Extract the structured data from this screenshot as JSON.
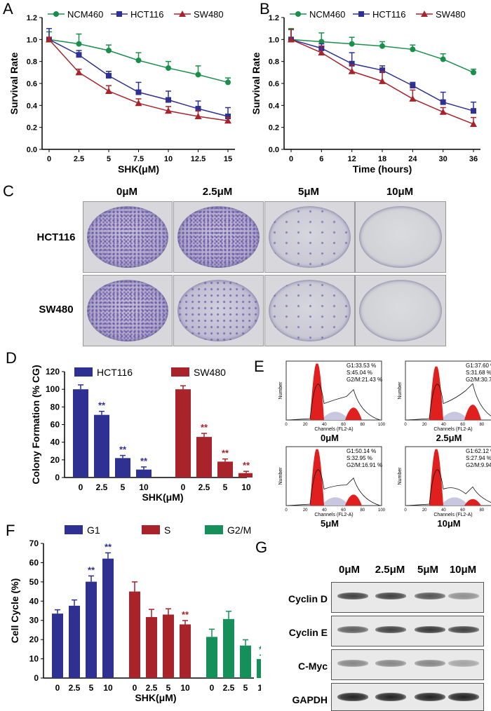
{
  "colors": {
    "ncm": "#1a8f4c",
    "hct": "#2e3192",
    "sw": "#a8232a",
    "g2m": "#16905a",
    "band": "#222222"
  },
  "panels": {
    "a": "A",
    "b": "B",
    "c": "C",
    "d": "D",
    "e": "E",
    "f": "F",
    "g": "G"
  },
  "panel_c": {
    "columns": [
      "0μM",
      "2.5μM",
      "5μM",
      "10μM"
    ],
    "rows": [
      "HCT116",
      "SW480"
    ]
  },
  "panel_e": {
    "plots": [
      {
        "label": "0μM",
        "g1": "G1:33.53 %",
        "s": "S:45.04 %",
        "g2m": "G2/M:21.43 %"
      },
      {
        "label": "2.5μM",
        "g1": "G1:37.60 %",
        "s": "S:31.68 %",
        "g2m": "G2/M:30.72 %"
      },
      {
        "label": "5μM",
        "g1": "G1:50.14 %",
        "s": "S:32.95 %",
        "g2m": "G2/M:16.91 %"
      },
      {
        "label": "10μM",
        "g1": "G1:62.12 %",
        "s": "S:27.94 %",
        "g2m": "G2/M:9.94 %"
      }
    ],
    "ylabel": "Number",
    "xlabel": "Channels (FL2-A)",
    "ticks": [
      "0",
      "20",
      "40",
      "60",
      "80",
      "100"
    ]
  },
  "panel_g": {
    "columns": [
      "0μM",
      "2.5μM",
      "5μM",
      "10μM"
    ],
    "rows": [
      "Cyclin D",
      "Cyclin E",
      "C-Myc",
      "GAPDH"
    ],
    "intensity": [
      [
        0.85,
        0.85,
        0.75,
        0.45
      ],
      [
        0.7,
        0.85,
        0.9,
        0.85
      ],
      [
        0.5,
        0.5,
        0.5,
        0.35
      ],
      [
        1,
        1,
        1,
        1
      ]
    ]
  },
  "chart_data": [
    {
      "id": "A",
      "type": "line",
      "xlabel": "SHK(μM)",
      "ylabel": "Survival Rate",
      "x": [
        0,
        2.5,
        5,
        7.5,
        10,
        12.5,
        15
      ],
      "xticks": [
        "0",
        "2.5",
        "5",
        "7.5",
        "10",
        "12.5",
        "15"
      ],
      "ylim": [
        0,
        1.2
      ],
      "yticks": [
        "0.0",
        "0.2",
        "0.4",
        "0.6",
        "0.8",
        "1.0",
        "1.2"
      ],
      "series": [
        {
          "name": "NCM460",
          "values": [
            1.0,
            0.96,
            0.9,
            0.81,
            0.74,
            0.68,
            0.61
          ],
          "err": [
            0.07,
            0.09,
            0.05,
            0.07,
            0.06,
            0.08,
            0.04
          ]
        },
        {
          "name": "HCT116",
          "values": [
            1.0,
            0.86,
            0.67,
            0.52,
            0.45,
            0.37,
            0.3
          ],
          "err": [
            0.1,
            0.04,
            0.04,
            0.09,
            0.08,
            0.07,
            0.08
          ]
        },
        {
          "name": "SW480",
          "values": [
            1.0,
            0.7,
            0.53,
            0.42,
            0.35,
            0.3,
            0.26
          ],
          "err": [
            0.02,
            0.03,
            0.05,
            0.04,
            0.04,
            0.05,
            0.03
          ]
        }
      ]
    },
    {
      "id": "B",
      "type": "line",
      "xlabel": "Time (hours)",
      "ylabel": "Survival Rate",
      "x": [
        0,
        6,
        12,
        18,
        24,
        30,
        36
      ],
      "xticks": [
        "0",
        "6",
        "12",
        "18",
        "24",
        "30",
        "36"
      ],
      "ylim": [
        0,
        1.2
      ],
      "yticks": [
        "0.0",
        "0.2",
        "0.4",
        "0.6",
        "0.8",
        "1.0",
        "1.2"
      ],
      "series": [
        {
          "name": "NCM460",
          "values": [
            1.0,
            0.98,
            0.96,
            0.94,
            0.91,
            0.82,
            0.7
          ],
          "err": [
            0.1,
            0.08,
            0.06,
            0.04,
            0.04,
            0.05,
            0.03
          ]
        },
        {
          "name": "HCT116",
          "values": [
            1.0,
            0.92,
            0.78,
            0.72,
            0.58,
            0.43,
            0.35
          ],
          "err": [
            0.09,
            0.04,
            0.1,
            0.04,
            0.03,
            0.09,
            0.08
          ]
        },
        {
          "name": "SW480",
          "values": [
            1.0,
            0.88,
            0.71,
            0.62,
            0.46,
            0.34,
            0.23
          ],
          "err": [
            0.09,
            0.06,
            0.06,
            0.09,
            0.08,
            0.04,
            0.06
          ]
        }
      ]
    },
    {
      "id": "D",
      "type": "bar",
      "xlabel": "SHK(μM)",
      "ylabel": "Colony Formation (% CG)",
      "categories": [
        "0",
        "2.5",
        "5",
        "10"
      ],
      "ylim": [
        0,
        120
      ],
      "yticks": [
        "0",
        "20",
        "40",
        "60",
        "80",
        "100",
        "120"
      ],
      "series": [
        {
          "name": "HCT116",
          "values": [
            100,
            71,
            22,
            9
          ],
          "err": [
            5,
            4,
            3,
            3
          ],
          "sig": [
            "",
            "**",
            "**",
            "**"
          ]
        },
        {
          "name": "SW480",
          "values": [
            100,
            46,
            18,
            5
          ],
          "err": [
            4,
            4,
            3,
            2
          ],
          "sig": [
            "",
            "**",
            "**",
            "**"
          ]
        }
      ]
    },
    {
      "id": "F",
      "type": "bar",
      "xlabel": "SHK(μM)",
      "ylabel": "Cell Cycle (%)",
      "categories": [
        "0",
        "2.5",
        "5",
        "10"
      ],
      "ylim": [
        0,
        70
      ],
      "yticks": [
        "0",
        "10",
        "20",
        "30",
        "40",
        "50",
        "60",
        "70"
      ],
      "series": [
        {
          "name": "G1",
          "values": [
            33.5,
            37.6,
            50.1,
            62.1
          ],
          "err": [
            2,
            3,
            3,
            3
          ],
          "sig": [
            "",
            "",
            "**",
            "**"
          ]
        },
        {
          "name": "S",
          "values": [
            45.0,
            31.7,
            33.0,
            27.9
          ],
          "err": [
            5,
            4,
            3,
            2
          ],
          "sig": [
            "",
            "",
            "",
            "**"
          ]
        },
        {
          "name": "G2/M",
          "values": [
            21.4,
            30.7,
            16.9,
            9.9
          ],
          "err": [
            4,
            4,
            3,
            2
          ],
          "sig": [
            "",
            "",
            "",
            "**"
          ]
        }
      ]
    }
  ]
}
